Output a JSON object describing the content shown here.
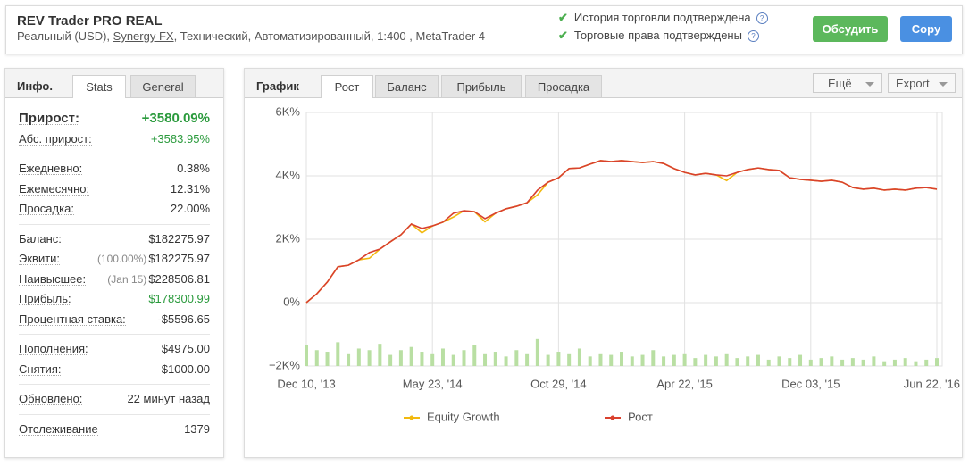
{
  "header": {
    "title": "REV Trader PRO REAL",
    "subtitle_start": "Реальный (USD), ",
    "broker": "Synergy FX",
    "subtitle_end": ", Технический, Автоматизированный, 1:400 , MetaTrader 4",
    "verifications": [
      "История торговли подтверждена",
      "Торговые права подтверждены"
    ],
    "buttons": [
      "Обсудить",
      "Copy"
    ]
  },
  "info_panel": {
    "title": "Инфо.",
    "tabs": [
      "Stats",
      "General"
    ],
    "groups": [
      [
        {
          "label": "Прирост:",
          "value": "+3580.09%",
          "color": "#2a9a3c"
        },
        {
          "label": "Абс. прирост:",
          "value": "+3583.95%",
          "color": "#2a9a3c"
        }
      ],
      [
        {
          "label": "Ежедневно:",
          "value": "0.38%"
        },
        {
          "label": "Ежемесячно:",
          "value": "12.31%"
        },
        {
          "label": "Просадка:",
          "value": "22.00%"
        }
      ],
      [
        {
          "label": "Баланс:",
          "value": "$182275.97"
        },
        {
          "label": "Эквити:",
          "note": "(100.00%)",
          "value": "$182275.97"
        },
        {
          "label": "Наивысшее:",
          "note": "(Jan 15)",
          "value": "$228506.81"
        },
        {
          "label": "Прибыль:",
          "value": "$178300.99",
          "color": "#2a9a3c"
        },
        {
          "label": "Процентная ставка:",
          "value": "-$5596.65"
        }
      ],
      [
        {
          "label": "Пополнения:",
          "value": "$4975.00"
        },
        {
          "label": "Снятия:",
          "value": "$1000.00"
        }
      ],
      [
        {
          "label": "Обновлено:",
          "value": "22 минут назад"
        }
      ],
      [
        {
          "label": "Отслеживание",
          "value": "1379"
        }
      ]
    ]
  },
  "chart_panel": {
    "title": "График",
    "tabs": [
      "Рост",
      "Баланс",
      "Прибыль",
      "Просадка"
    ],
    "buttons": [
      "Ещё",
      "Export"
    ]
  },
  "chart_data": {
    "type": "line",
    "categories": [
      "Dec 10, '13",
      null,
      null,
      null,
      null,
      null,
      null,
      null,
      null,
      null,
      null,
      null,
      "May 23, '14",
      null,
      null,
      null,
      null,
      null,
      null,
      null,
      null,
      null,
      null,
      null,
      "Oct 29, '14",
      null,
      null,
      null,
      null,
      null,
      null,
      null,
      null,
      null,
      null,
      null,
      "Apr 22, '15",
      null,
      null,
      null,
      null,
      null,
      null,
      null,
      null,
      null,
      null,
      null,
      "Dec 03, '15",
      null,
      null,
      null,
      null,
      null,
      null,
      null,
      null,
      null,
      null,
      null,
      "Jun 22, '16"
    ],
    "ylim": [
      -2000,
      6000
    ],
    "yticks": [
      {
        "value": -2000,
        "label": "−2K%"
      },
      {
        "value": 0,
        "label": "0%"
      },
      {
        "value": 2000,
        "label": "2K%"
      },
      {
        "value": 4000,
        "label": "4K%"
      },
      {
        "value": 6000,
        "label": "6K%"
      }
    ],
    "grid": true,
    "series": [
      {
        "name": "Equity Growth",
        "color": "#f2b90f",
        "values": [
          0,
          280,
          650,
          1130,
          1180,
          1350,
          1400,
          1690,
          1920,
          2140,
          2480,
          2200,
          2420,
          2540,
          2700,
          2900,
          2870,
          2550,
          2820,
          2960,
          3040,
          3150,
          3400,
          3800,
          3940,
          4230,
          4250,
          4370,
          4480,
          4450,
          4480,
          4450,
          4420,
          4450,
          4390,
          4230,
          4110,
          4030,
          4080,
          4030,
          3850,
          4110,
          4200,
          4250,
          4200,
          4170,
          3940,
          3890,
          3860,
          3830,
          3860,
          3800,
          3630,
          3580,
          3610,
          3550,
          3580,
          3550,
          3610,
          3630,
          3580
        ]
      },
      {
        "name": "Рост",
        "color": "#d9412e",
        "values": [
          0,
          280,
          650,
          1130,
          1180,
          1350,
          1580,
          1690,
          1920,
          2140,
          2480,
          2340,
          2420,
          2540,
          2820,
          2900,
          2870,
          2650,
          2820,
          2960,
          3040,
          3150,
          3550,
          3800,
          3940,
          4230,
          4250,
          4370,
          4480,
          4450,
          4480,
          4450,
          4420,
          4450,
          4390,
          4230,
          4110,
          4030,
          4080,
          4030,
          4000,
          4110,
          4200,
          4250,
          4200,
          4170,
          3940,
          3890,
          3860,
          3830,
          3860,
          3800,
          3630,
          3580,
          3610,
          3550,
          3580,
          3550,
          3610,
          3630,
          3580
        ]
      }
    ],
    "bars": {
      "color": "#b9dfa3",
      "values": [
        -1350,
        -1500,
        -1550,
        -1250,
        -1600,
        -1450,
        -1500,
        -1300,
        -1650,
        -1500,
        -1400,
        -1550,
        -1600,
        -1450,
        -1650,
        -1500,
        -1350,
        -1600,
        -1550,
        -1700,
        -1500,
        -1600,
        -1150,
        -1650,
        -1550,
        -1600,
        -1450,
        -1700,
        -1600,
        -1650,
        -1550,
        -1700,
        -1650,
        -1500,
        -1700,
        -1650,
        -1600,
        -1750,
        -1650,
        -1700,
        -1600,
        -1750,
        -1700,
        -1650,
        -1800,
        -1700,
        -1750,
        -1650,
        -1800,
        -1750,
        -1700,
        -1800,
        -1750,
        -1800,
        -1700,
        -1850,
        -1800,
        -1750,
        -1850,
        -1800,
        -1750
      ]
    }
  }
}
